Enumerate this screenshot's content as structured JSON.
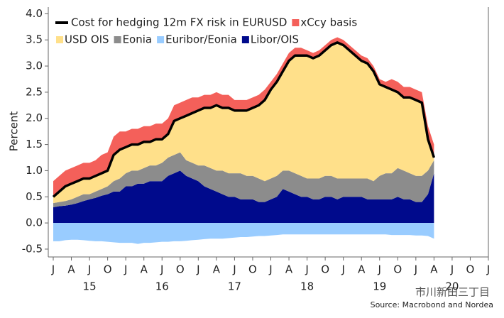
{
  "chart_data": {
    "type": "stacked_area",
    "y_label": "Percent",
    "source": "Source: Macrobond and Nordea",
    "watermark": "市川新田三丁目",
    "x": [
      "2015-01",
      "2015-02",
      "2015-03",
      "2015-04",
      "2015-05",
      "2015-06",
      "2015-07",
      "2015-08",
      "2015-09",
      "2015-10",
      "2015-11",
      "2015-12",
      "2016-01",
      "2016-02",
      "2016-03",
      "2016-04",
      "2016-05",
      "2016-06",
      "2016-07",
      "2016-08",
      "2016-09",
      "2016-10",
      "2016-11",
      "2016-12",
      "2017-01",
      "2017-02",
      "2017-03",
      "2017-04",
      "2017-05",
      "2017-06",
      "2017-07",
      "2017-08",
      "2017-09",
      "2017-10",
      "2017-11",
      "2017-12",
      "2018-01",
      "2018-02",
      "2018-03",
      "2018-04",
      "2018-05",
      "2018-06",
      "2018-07",
      "2018-08",
      "2018-09",
      "2018-10",
      "2018-11",
      "2018-12",
      "2019-01",
      "2019-02",
      "2019-03",
      "2019-04",
      "2019-05",
      "2019-06",
      "2019-07",
      "2019-08",
      "2019-09",
      "2019-10",
      "2019-11",
      "2019-12",
      "2020-01",
      "2020-02",
      "2020-03",
      "2020-04"
    ],
    "series": [
      {
        "name": "Libor/OIS",
        "color": "#000a8c",
        "values": [
          0.3,
          0.32,
          0.33,
          0.35,
          0.38,
          0.42,
          0.45,
          0.48,
          0.52,
          0.55,
          0.6,
          0.6,
          0.7,
          0.7,
          0.75,
          0.75,
          0.8,
          0.8,
          0.8,
          0.9,
          0.95,
          1.0,
          0.9,
          0.85,
          0.8,
          0.7,
          0.65,
          0.6,
          0.55,
          0.5,
          0.5,
          0.45,
          0.45,
          0.45,
          0.4,
          0.4,
          0.45,
          0.5,
          0.65,
          0.6,
          0.55,
          0.5,
          0.5,
          0.45,
          0.45,
          0.5,
          0.5,
          0.45,
          0.5,
          0.5,
          0.5,
          0.5,
          0.45,
          0.45,
          0.45,
          0.45,
          0.45,
          0.5,
          0.45,
          0.45,
          0.4,
          0.4,
          0.55,
          0.95
        ]
      },
      {
        "name": "Eonia",
        "color": "#8c8c8c",
        "values": [
          0.08,
          0.08,
          0.09,
          0.1,
          0.12,
          0.13,
          0.1,
          0.12,
          0.13,
          0.15,
          0.2,
          0.25,
          0.25,
          0.3,
          0.25,
          0.3,
          0.3,
          0.3,
          0.35,
          0.35,
          0.35,
          0.35,
          0.3,
          0.3,
          0.3,
          0.4,
          0.4,
          0.4,
          0.45,
          0.45,
          0.45,
          0.5,
          0.45,
          0.45,
          0.45,
          0.4,
          0.4,
          0.4,
          0.35,
          0.4,
          0.4,
          0.4,
          0.35,
          0.4,
          0.4,
          0.4,
          0.4,
          0.4,
          0.35,
          0.35,
          0.35,
          0.35,
          0.4,
          0.35,
          0.45,
          0.5,
          0.5,
          0.55,
          0.55,
          0.5,
          0.5,
          0.5,
          0.45,
          0.25
        ]
      },
      {
        "name": "USD OIS",
        "color": "#ffe08a",
        "values": [
          0.12,
          0.2,
          0.28,
          0.3,
          0.3,
          0.3,
          0.3,
          0.3,
          0.3,
          0.3,
          0.5,
          0.55,
          0.5,
          0.5,
          0.5,
          0.5,
          0.45,
          0.5,
          0.45,
          0.45,
          0.65,
          0.65,
          0.85,
          0.95,
          1.05,
          1.1,
          1.15,
          1.25,
          1.2,
          1.25,
          1.2,
          1.2,
          1.25,
          1.3,
          1.4,
          1.55,
          1.7,
          1.8,
          1.9,
          2.1,
          2.25,
          2.3,
          2.35,
          2.3,
          2.35,
          2.4,
          2.5,
          2.6,
          2.55,
          2.45,
          2.35,
          2.25,
          2.2,
          2.1,
          1.75,
          1.65,
          1.6,
          1.45,
          1.4,
          1.45,
          1.45,
          1.4,
          0.6,
          0.05
        ]
      },
      {
        "name": "xCcy basis",
        "color": "#f4605a",
        "values": [
          0.3,
          0.3,
          0.3,
          0.3,
          0.3,
          0.3,
          0.3,
          0.3,
          0.35,
          0.35,
          0.35,
          0.35,
          0.3,
          0.3,
          0.3,
          0.3,
          0.3,
          0.3,
          0.3,
          0.3,
          0.3,
          0.3,
          0.3,
          0.3,
          0.25,
          0.25,
          0.25,
          0.25,
          0.25,
          0.25,
          0.2,
          0.2,
          0.2,
          0.2,
          0.2,
          0.2,
          0.15,
          0.15,
          0.15,
          0.15,
          0.15,
          0.15,
          0.1,
          0.1,
          0.1,
          0.1,
          0.1,
          0.1,
          0.1,
          0.1,
          0.1,
          0.1,
          0.1,
          0.1,
          0.1,
          0.1,
          0.2,
          0.2,
          0.2,
          0.2,
          0.2,
          0.2,
          0.25,
          0.25
        ]
      },
      {
        "name": "Euribor/Eonia",
        "color": "#99ccff",
        "values": [
          -0.35,
          -0.35,
          -0.33,
          -0.32,
          -0.32,
          -0.33,
          -0.34,
          -0.35,
          -0.35,
          -0.36,
          -0.37,
          -0.38,
          -0.38,
          -0.38,
          -0.4,
          -0.38,
          -0.38,
          -0.37,
          -0.36,
          -0.36,
          -0.35,
          -0.35,
          -0.34,
          -0.33,
          -0.32,
          -0.31,
          -0.3,
          -0.3,
          -0.3,
          -0.29,
          -0.28,
          -0.27,
          -0.27,
          -0.26,
          -0.25,
          -0.25,
          -0.24,
          -0.23,
          -0.22,
          -0.22,
          -0.22,
          -0.22,
          -0.22,
          -0.22,
          -0.22,
          -0.22,
          -0.22,
          -0.22,
          -0.22,
          -0.22,
          -0.22,
          -0.22,
          -0.22,
          -0.22,
          -0.22,
          -0.22,
          -0.23,
          -0.23,
          -0.23,
          -0.23,
          -0.24,
          -0.24,
          -0.25,
          -0.3
        ]
      },
      {
        "name": "Cost for hedging 12m FX risk in EURUSD",
        "type": "line",
        "color": "#000000",
        "values": [
          0.5,
          0.6,
          0.7,
          0.75,
          0.8,
          0.85,
          0.85,
          0.9,
          0.95,
          1.0,
          1.3,
          1.4,
          1.45,
          1.5,
          1.5,
          1.55,
          1.55,
          1.6,
          1.6,
          1.7,
          1.95,
          2.0,
          2.05,
          2.1,
          2.15,
          2.2,
          2.2,
          2.25,
          2.2,
          2.2,
          2.15,
          2.15,
          2.15,
          2.2,
          2.25,
          2.35,
          2.55,
          2.7,
          2.9,
          3.1,
          3.2,
          3.2,
          3.2,
          3.15,
          3.2,
          3.3,
          3.4,
          3.45,
          3.4,
          3.3,
          3.2,
          3.1,
          3.05,
          2.9,
          2.65,
          2.6,
          2.55,
          2.5,
          2.4,
          2.4,
          2.35,
          2.3,
          1.6,
          1.25
        ]
      }
    ],
    "xlim": [
      "2015-01",
      "2021-01"
    ],
    "xticks": [
      {
        "value": "2015-01",
        "label": "J"
      },
      {
        "value": "2015-04",
        "label": "A"
      },
      {
        "value": "2015-07",
        "label": "J"
      },
      {
        "value": "2015-10",
        "label": "O"
      },
      {
        "value": "2016-01",
        "label": "J"
      },
      {
        "value": "2016-04",
        "label": "A"
      },
      {
        "value": "2016-07",
        "label": "J"
      },
      {
        "value": "2016-10",
        "label": "O"
      },
      {
        "value": "2017-01",
        "label": "J"
      },
      {
        "value": "2017-04",
        "label": "A"
      },
      {
        "value": "2017-07",
        "label": "J"
      },
      {
        "value": "2017-10",
        "label": "O"
      },
      {
        "value": "2018-01",
        "label": "J"
      },
      {
        "value": "2018-04",
        "label": "A"
      },
      {
        "value": "2018-07",
        "label": "J"
      },
      {
        "value": "2018-10",
        "label": "O"
      },
      {
        "value": "2019-01",
        "label": "J"
      },
      {
        "value": "2019-04",
        "label": "A"
      },
      {
        "value": "2019-07",
        "label": "J"
      },
      {
        "value": "2019-10",
        "label": "O"
      },
      {
        "value": "2020-01",
        "label": "J"
      },
      {
        "value": "2020-04",
        "label": "A"
      },
      {
        "value": "2020-07",
        "label": "J"
      },
      {
        "value": "2020-10",
        "label": "O"
      },
      {
        "value": "2021-01",
        "label": "J"
      }
    ],
    "year_labels": [
      {
        "value": "2015-07",
        "label": "15"
      },
      {
        "value": "2016-07",
        "label": "16"
      },
      {
        "value": "2017-07",
        "label": "17"
      },
      {
        "value": "2018-07",
        "label": "18"
      },
      {
        "value": "2019-07",
        "label": "19"
      },
      {
        "value": "2020-07",
        "label": "20"
      }
    ],
    "ylim": [
      -0.65,
      4.1
    ],
    "yticks": [
      {
        "value": 4,
        "label": "4.0"
      },
      3.5,
      {
        "value": 3,
        "label": "3.0"
      },
      2.5,
      {
        "value": 2,
        "label": "2.0"
      },
      1.5,
      {
        "value": 1,
        "label": "1.0"
      },
      0.5,
      {
        "value": 0,
        "label": "0.0"
      },
      -0.5
    ],
    "grid": false
  }
}
